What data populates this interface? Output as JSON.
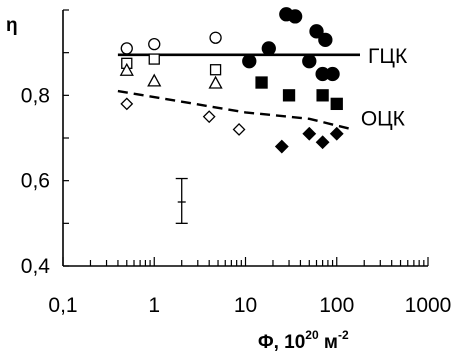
{
  "chart_data": {
    "type": "scatter",
    "x_scale": "log",
    "xlim": [
      0.1,
      1000
    ],
    "ylim": [
      0.4,
      1.0
    ],
    "x_ticks": [
      0.1,
      1,
      10,
      100,
      1000
    ],
    "x_tick_labels": [
      "0,1",
      "1",
      "10",
      "100",
      "1000"
    ],
    "y_ticks": [
      0.4,
      0.6,
      0.8
    ],
    "y_tick_labels": [
      "0,4",
      "0,6",
      "0,8"
    ],
    "ylabel": "η",
    "xlabel_main": "Φ, 10",
    "xlabel_exp": "20",
    "xlabel_unit": " м",
    "xlabel_unit_exp": "-2",
    "grid": false,
    "series": [
      {
        "marker": "circle-open",
        "points": [
          [
            0.5,
            0.91
          ],
          [
            1,
            0.92
          ],
          [
            4.7,
            0.935
          ]
        ]
      },
      {
        "marker": "square-open",
        "points": [
          [
            0.5,
            0.875
          ],
          [
            1,
            0.885
          ],
          [
            4.7,
            0.86
          ]
        ]
      },
      {
        "marker": "triangle-open",
        "points": [
          [
            0.5,
            0.86
          ],
          [
            1,
            0.835
          ],
          [
            4.7,
            0.83
          ]
        ]
      },
      {
        "marker": "diamond-open",
        "points": [
          [
            0.5,
            0.78
          ],
          [
            4,
            0.75
          ],
          [
            8.5,
            0.72
          ]
        ]
      },
      {
        "marker": "circle-filled",
        "points": [
          [
            11,
            0.88
          ],
          [
            18,
            0.91
          ],
          [
            28,
            0.99
          ],
          [
            35,
            0.985
          ],
          [
            50,
            0.88
          ],
          [
            60,
            0.95
          ],
          [
            70,
            0.85
          ],
          [
            75,
            0.93
          ],
          [
            90,
            0.85
          ]
        ]
      },
      {
        "marker": "square-filled",
        "points": [
          [
            15,
            0.83
          ],
          [
            30,
            0.8
          ],
          [
            70,
            0.8
          ],
          [
            100,
            0.78
          ]
        ]
      },
      {
        "marker": "diamond-filled",
        "points": [
          [
            25,
            0.68
          ],
          [
            50,
            0.71
          ],
          [
            70,
            0.69
          ],
          [
            100,
            0.71
          ]
        ]
      }
    ],
    "curves": [
      {
        "name": "ГЦК",
        "style": "solid",
        "points": [
          [
            0.4,
            0.895
          ],
          [
            180,
            0.895
          ]
        ]
      },
      {
        "name": "ОЦК",
        "style": "dashed",
        "points": [
          [
            0.4,
            0.81
          ],
          [
            2,
            0.785
          ],
          [
            10,
            0.76
          ],
          [
            50,
            0.745
          ],
          [
            150,
            0.72
          ]
        ]
      }
    ],
    "error_bar": {
      "x": 2,
      "y": 0.55,
      "y_low": 0.5,
      "y_high": 0.605
    }
  }
}
